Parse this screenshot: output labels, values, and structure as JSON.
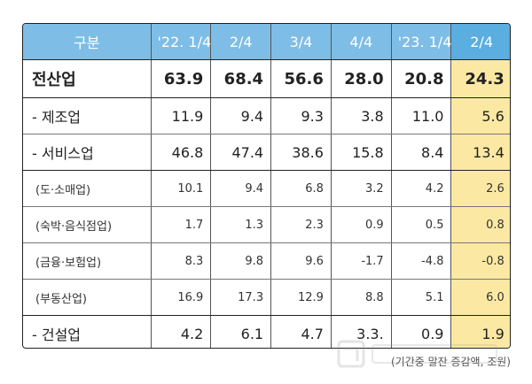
{
  "table": {
    "header": [
      "구분",
      "'22. 1/4",
      "2/4",
      "3/4",
      "4/4",
      "'23. 1/4",
      "2/4"
    ],
    "rows": [
      {
        "label": "전산업",
        "values": [
          "63.9",
          "68.4",
          "56.6",
          "28.0",
          "20.8",
          "24.3"
        ],
        "kind": "total"
      },
      {
        "label": "- 제조업",
        "values": [
          "11.9",
          "9.4",
          "9.3",
          "3.8",
          "11.0",
          "5.6"
        ],
        "kind": "main"
      },
      {
        "label": "- 서비스업",
        "values": [
          "46.8",
          "47.4",
          "38.6",
          "15.8",
          "8.4",
          "13.4"
        ],
        "kind": "main"
      },
      {
        "label": "(도·소매업)",
        "values": [
          "10.1",
          "9.4",
          "6.8",
          "3.2",
          "4.2",
          "2.6"
        ],
        "kind": "sub"
      },
      {
        "label": "(숙박·음식점업)",
        "values": [
          "1.7",
          "1.3",
          "2.3",
          "0.9",
          "0.5",
          "0.8"
        ],
        "kind": "sub"
      },
      {
        "label": "(금융·보험업)",
        "values": [
          "8.3",
          "9.8",
          "9.6",
          "-1.7",
          "-4.8",
          "-0.8"
        ],
        "kind": "sub"
      },
      {
        "label": "(부동산업)",
        "values": [
          "16.9",
          "17.3",
          "12.9",
          "8.8",
          "5.1",
          "6.0"
        ],
        "kind": "sub"
      },
      {
        "label": "- 건설업",
        "values": [
          "4.2",
          "6.1",
          "4.7",
          "3.3.",
          "0.9",
          "1.9"
        ],
        "kind": "main"
      }
    ]
  },
  "source_note": "(기간중 말잔 증감액, 조원)",
  "highlight_color": "#fbe9a3",
  "header_color": "#7ebde6"
}
